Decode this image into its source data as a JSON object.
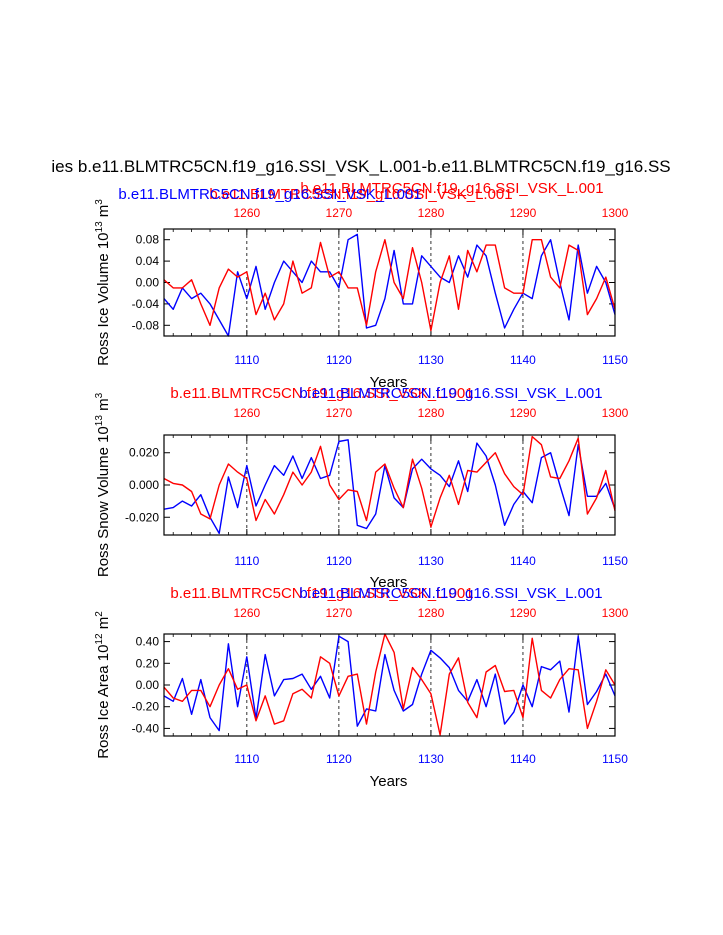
{
  "figure": {
    "main_title": "ies b.e11.BLMTRC5CN.f19_g16.SSI_VSK_L.001-b.e11.BLMTRC5CN.f19_g16.SS",
    "colors": {
      "blue": "#0000ff",
      "red": "#ff0000",
      "axis": "#000000",
      "grid": "#000000"
    }
  },
  "chart_data": [
    {
      "type": "line",
      "name": "ross-ice-volume",
      "title_blue": "b.e11.BLMTRC5CN.f19_g16.SSI_VSK_L.001",
      "title_red": "b.e11.BLMTRC5CN.f19_g16.SSI_VSK_L.001",
      "title_red_overlap": "b.e11.BLMTRC5CN.f19_g16.SSI_VSK_L.001",
      "ylabel": "Ross Ice Volume 10",
      "ylabel_exp": "13",
      "ylabel_unit": "m",
      "ylabel_unit_exp": "3",
      "xlabel": "Years",
      "xlim_bottom": [
        1101,
        1150
      ],
      "xlim_top": [
        1251,
        1300
      ],
      "xticks_bottom": [
        "1110",
        "1120",
        "1130",
        "1140",
        "1150"
      ],
      "xticks_top": [
        "1260",
        "1270",
        "1280",
        "1290",
        "1300"
      ],
      "ylim": [
        -0.1,
        0.1
      ],
      "yticks": [
        0.08,
        0.04,
        0.0,
        -0.04,
        -0.08
      ],
      "ytick_labels": [
        "0.08",
        "0.04",
        "0.00",
        "-0.04",
        "-0.08"
      ],
      "series": [
        {
          "name": "b.e11.BLMTRC5CN.f19_g16.SSI_VSK_L.001",
          "color": "blue",
          "x": [
            1101,
            1102,
            1103,
            1104,
            1105,
            1106,
            1107,
            1108,
            1109,
            1110,
            1111,
            1112,
            1113,
            1114,
            1115,
            1116,
            1117,
            1118,
            1119,
            1120,
            1121,
            1122,
            1123,
            1124,
            1125,
            1126,
            1127,
            1128,
            1129,
            1130,
            1131,
            1132,
            1133,
            1134,
            1135,
            1136,
            1137,
            1138,
            1139,
            1140,
            1141,
            1142,
            1143,
            1144,
            1145,
            1146,
            1147,
            1148,
            1149,
            1150
          ],
          "values": [
            -0.03,
            -0.05,
            -0.01,
            -0.03,
            -0.02,
            -0.04,
            -0.07,
            -0.1,
            0.02,
            -0.03,
            0.03,
            -0.05,
            0.0,
            0.04,
            0.02,
            0.0,
            0.04,
            0.02,
            0.02,
            -0.01,
            0.08,
            0.09,
            -0.085,
            -0.08,
            -0.03,
            0.06,
            -0.04,
            -0.04,
            0.05,
            0.03,
            0.01,
            0.0,
            0.05,
            0.01,
            0.07,
            0.05,
            -0.02,
            -0.085,
            -0.05,
            -0.02,
            -0.03,
            0.05,
            0.08,
            0.0,
            -0.07,
            0.07,
            -0.02,
            0.03,
            0.0,
            -0.06
          ]
        },
        {
          "name": "b.e11.BLMTRC5CN.f19_g16.SSI_VSK_L.001",
          "color": "red",
          "x": [
            1251,
            1252,
            1253,
            1254,
            1255,
            1256,
            1257,
            1258,
            1259,
            1260,
            1261,
            1262,
            1263,
            1264,
            1265,
            1266,
            1267,
            1268,
            1269,
            1270,
            1271,
            1272,
            1273,
            1274,
            1275,
            1276,
            1277,
            1278,
            1279,
            1280,
            1281,
            1282,
            1283,
            1284,
            1285,
            1286,
            1287,
            1288,
            1289,
            1290,
            1291,
            1292,
            1293,
            1294,
            1295,
            1296,
            1297,
            1298,
            1299,
            1300
          ],
          "values": [
            0.005,
            -0.01,
            -0.01,
            0.005,
            -0.04,
            -0.08,
            -0.01,
            0.025,
            0.01,
            0.02,
            -0.06,
            -0.02,
            -0.07,
            -0.04,
            0.04,
            -0.02,
            -0.01,
            0.075,
            0.01,
            0.02,
            -0.01,
            -0.01,
            -0.08,
            0.02,
            0.08,
            0.0,
            -0.03,
            0.065,
            0.0,
            -0.09,
            0.0,
            0.05,
            -0.05,
            0.06,
            0.02,
            0.07,
            0.07,
            -0.01,
            -0.02,
            -0.02,
            0.08,
            0.08,
            0.01,
            -0.01,
            0.07,
            0.06,
            -0.06,
            -0.03,
            0.01,
            -0.05
          ]
        }
      ]
    },
    {
      "type": "line",
      "name": "ross-snow-volume",
      "title_blue": "b.e11.BLMTRC5CN.f19_g16.SSI_VSK_L.001",
      "title_red": "b.e11.BLMTRC5CN.f19_g16.SSI_VSK_L.001",
      "ylabel": "Ross Snow Volume 10",
      "ylabel_exp": "13",
      "ylabel_unit": "m",
      "ylabel_unit_exp": "3",
      "xlabel": "Years",
      "xlim_bottom": [
        1101,
        1150
      ],
      "xlim_top": [
        1251,
        1300
      ],
      "xticks_bottom": [
        "1110",
        "1120",
        "1130",
        "1140",
        "1150"
      ],
      "xticks_top": [
        "1260",
        "1270",
        "1280",
        "1290",
        "1300"
      ],
      "ylim": [
        -0.031,
        0.031
      ],
      "yticks": [
        0.02,
        0.0,
        -0.02
      ],
      "ytick_labels": [
        "0.020",
        "0.000",
        "-0.020"
      ],
      "series": [
        {
          "name": "b.e11.BLMTRC5CN.f19_g16.SSI_VSK_L.001",
          "color": "blue",
          "x": [
            1101,
            1102,
            1103,
            1104,
            1105,
            1106,
            1107,
            1108,
            1109,
            1110,
            1111,
            1112,
            1113,
            1114,
            1115,
            1116,
            1117,
            1118,
            1119,
            1120,
            1121,
            1122,
            1123,
            1124,
            1125,
            1126,
            1127,
            1128,
            1129,
            1130,
            1131,
            1132,
            1133,
            1134,
            1135,
            1136,
            1137,
            1138,
            1139,
            1140,
            1141,
            1142,
            1143,
            1144,
            1145,
            1146,
            1147,
            1148,
            1149,
            1150
          ],
          "values": [
            -0.015,
            -0.014,
            -0.01,
            -0.013,
            -0.006,
            -0.02,
            -0.03,
            0.005,
            -0.014,
            0.012,
            -0.013,
            0.0,
            0.012,
            0.006,
            0.018,
            0.004,
            0.017,
            0.004,
            0.006,
            0.027,
            0.028,
            -0.025,
            -0.027,
            -0.018,
            0.012,
            -0.008,
            -0.014,
            0.01,
            0.016,
            0.01,
            0.006,
            -0.001,
            0.015,
            -0.004,
            0.026,
            0.018,
            0.0,
            -0.025,
            -0.012,
            -0.004,
            -0.011,
            0.017,
            0.02,
            0.0,
            -0.019,
            0.025,
            -0.007,
            -0.007,
            0.001,
            -0.015
          ]
        },
        {
          "name": "b.e11.BLMTRC5CN.f19_g16.SSI_VSK_L.001",
          "color": "red",
          "x": [
            1251,
            1252,
            1253,
            1254,
            1255,
            1256,
            1257,
            1258,
            1259,
            1260,
            1261,
            1262,
            1263,
            1264,
            1265,
            1266,
            1267,
            1268,
            1269,
            1270,
            1271,
            1272,
            1273,
            1274,
            1275,
            1276,
            1277,
            1278,
            1279,
            1280,
            1281,
            1282,
            1283,
            1284,
            1285,
            1286,
            1287,
            1288,
            1289,
            1290,
            1291,
            1292,
            1293,
            1294,
            1295,
            1296,
            1297,
            1298,
            1299,
            1300
          ],
          "values": [
            0.004,
            0.001,
            0.0,
            -0.004,
            -0.018,
            -0.021,
            0.0,
            0.013,
            0.008,
            0.004,
            -0.022,
            -0.009,
            -0.018,
            -0.006,
            0.008,
            0.0,
            0.008,
            0.024,
            0.0,
            -0.009,
            -0.003,
            -0.004,
            -0.022,
            0.008,
            0.013,
            -0.002,
            -0.014,
            0.016,
            -0.002,
            -0.026,
            -0.008,
            0.006,
            -0.012,
            0.009,
            0.008,
            0.014,
            0.02,
            0.007,
            -0.001,
            -0.006,
            0.03,
            0.025,
            0.005,
            0.004,
            0.015,
            0.029,
            -0.018,
            -0.008,
            0.009,
            -0.016
          ]
        }
      ]
    },
    {
      "type": "line",
      "name": "ross-ice-area",
      "title_blue": "b.e11.BLMTRC5CN.f19_g16.SSI_VSK_L.001",
      "title_red": "b.e11.BLMTRC5CN.f19_g16.SSI_VSK_L.001",
      "ylabel": "Ross Ice Area 10",
      "ylabel_exp": "12",
      "ylabel_unit": "m",
      "ylabel_unit_exp": "2",
      "xlabel": "Years",
      "xlim_bottom": [
        1101,
        1150
      ],
      "xlim_top": [
        1251,
        1300
      ],
      "xticks_bottom": [
        "1110",
        "1120",
        "1130",
        "1140",
        "1150"
      ],
      "xticks_top": [
        "1260",
        "1270",
        "1280",
        "1290",
        "1300"
      ],
      "ylim": [
        -0.47,
        0.47
      ],
      "yticks": [
        0.4,
        0.2,
        0.0,
        -0.2,
        -0.4
      ],
      "ytick_labels": [
        "0.40",
        "0.20",
        "0.00",
        "-0.20",
        "-0.40"
      ],
      "series": [
        {
          "name": "b.e11.BLMTRC5CN.f19_g16.SSI_VSK_L.001",
          "color": "blue",
          "x": [
            1101,
            1102,
            1103,
            1104,
            1105,
            1106,
            1107,
            1108,
            1109,
            1110,
            1111,
            1112,
            1113,
            1114,
            1115,
            1116,
            1117,
            1118,
            1119,
            1120,
            1121,
            1122,
            1123,
            1124,
            1125,
            1126,
            1127,
            1128,
            1129,
            1130,
            1131,
            1132,
            1133,
            1134,
            1135,
            1136,
            1137,
            1138,
            1139,
            1140,
            1141,
            1142,
            1143,
            1144,
            1145,
            1146,
            1147,
            1148,
            1149,
            1150
          ],
          "values": [
            -0.1,
            -0.15,
            0.06,
            -0.27,
            0.05,
            -0.3,
            -0.42,
            0.38,
            -0.2,
            0.26,
            -0.31,
            0.28,
            -0.1,
            0.05,
            0.06,
            0.1,
            -0.04,
            0.08,
            -0.12,
            0.45,
            0.4,
            -0.38,
            -0.22,
            -0.24,
            0.28,
            -0.05,
            -0.24,
            -0.18,
            0.1,
            0.32,
            0.25,
            0.16,
            -0.05,
            -0.15,
            0.05,
            -0.2,
            0.1,
            -0.36,
            -0.25,
            0.0,
            -0.2,
            0.17,
            0.14,
            0.22,
            -0.25,
            0.45,
            -0.18,
            -0.06,
            0.1,
            -0.1
          ]
        },
        {
          "name": "b.e11.BLMTRC5CN.f19_g16.SSI_VSK_L.001",
          "color": "red",
          "x": [
            1251,
            1252,
            1253,
            1254,
            1255,
            1256,
            1257,
            1258,
            1259,
            1260,
            1261,
            1262,
            1263,
            1264,
            1265,
            1266,
            1267,
            1268,
            1269,
            1270,
            1271,
            1272,
            1273,
            1274,
            1275,
            1276,
            1277,
            1278,
            1279,
            1280,
            1281,
            1282,
            1283,
            1284,
            1285,
            1286,
            1287,
            1288,
            1289,
            1290,
            1291,
            1292,
            1293,
            1294,
            1295,
            1296,
            1297,
            1298,
            1299,
            1300
          ],
          "values": [
            -0.02,
            -0.12,
            -0.15,
            -0.05,
            -0.05,
            -0.2,
            0.0,
            0.15,
            -0.04,
            0.0,
            -0.33,
            -0.1,
            -0.36,
            -0.33,
            -0.08,
            -0.04,
            -0.12,
            0.26,
            0.2,
            -0.1,
            0.08,
            0.1,
            -0.36,
            0.12,
            0.47,
            0.3,
            -0.22,
            0.16,
            0.05,
            -0.08,
            -0.46,
            0.1,
            0.25,
            -0.16,
            -0.3,
            0.12,
            0.18,
            -0.06,
            -0.05,
            -0.3,
            0.43,
            -0.05,
            -0.12,
            0.05,
            0.15,
            0.14,
            -0.4,
            -0.15,
            0.14,
            0.0
          ]
        }
      ]
    }
  ]
}
